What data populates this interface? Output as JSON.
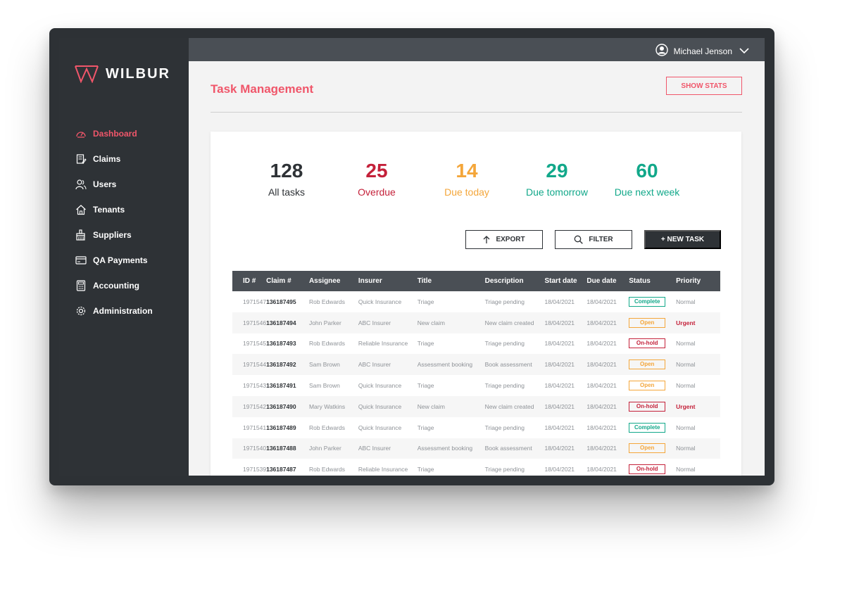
{
  "brand": {
    "name": "WILBUR",
    "accent": "#f0566a"
  },
  "sidebar": {
    "items": [
      {
        "label": "Dashboard",
        "icon": "speedometer-icon",
        "active": true
      },
      {
        "label": "Claims",
        "icon": "clipboard-edit-icon"
      },
      {
        "label": "Users",
        "icon": "users-icon"
      },
      {
        "label": "Tenants",
        "icon": "home-icon"
      },
      {
        "label": "Suppliers",
        "icon": "paint-brush-icon"
      },
      {
        "label": "QA Payments",
        "icon": "credit-card-icon"
      },
      {
        "label": "Accounting",
        "icon": "calculator-icon"
      },
      {
        "label": "Administration",
        "icon": "gear-icon"
      }
    ]
  },
  "topbar": {
    "user_name": "Michael Jenson"
  },
  "page": {
    "title": "Task Management",
    "show_stats_label": "SHOW STATS"
  },
  "stats": [
    {
      "value": "128",
      "label": "All tasks",
      "color": "#2e3236"
    },
    {
      "value": "25",
      "label": "Overdue",
      "color": "#c4213a"
    },
    {
      "value": "14",
      "label": "Due today",
      "color": "#f4a63a"
    },
    {
      "value": "29",
      "label": "Due tomorrow",
      "color": "#12a88a"
    },
    {
      "value": "60",
      "label": "Due next week",
      "color": "#12a88a"
    }
  ],
  "actions": {
    "export_label": "EXPORT",
    "filter_label": "FILTER",
    "new_task_label": "+ NEW TASK"
  },
  "table": {
    "columns": [
      "ID #",
      "Claim #",
      "Assignee",
      "Insurer",
      "Title",
      "Description",
      "Start date",
      "Due date",
      "Status",
      "Priority"
    ],
    "rows": [
      [
        "1971547",
        "136187495",
        "Rob Edwards",
        "Quick Insurance",
        "Triage",
        "Triage pending",
        "18/04/2021",
        "18/04/2021",
        "Complete",
        "Normal"
      ],
      [
        "1971546",
        "136187494",
        "John Parker",
        "ABC Insurer",
        "New claim",
        "New claim created",
        "18/04/2021",
        "18/04/2021",
        "Open",
        "Urgent"
      ],
      [
        "1971545",
        "136187493",
        "Rob Edwards",
        "Reliable Insurance",
        "Triage",
        "Triage pending",
        "18/04/2021",
        "18/04/2021",
        "On-hold",
        "Normal"
      ],
      [
        "1971544",
        "136187492",
        "Sam Brown",
        "ABC Insurer",
        "Assessment booking",
        "Book assessment",
        "18/04/2021",
        "18/04/2021",
        "Open",
        "Normal"
      ],
      [
        "1971543",
        "136187491",
        "Sam Brown",
        "Quick Insurance",
        "Triage",
        "Triage pending",
        "18/04/2021",
        "18/04/2021",
        "Open",
        "Normal"
      ],
      [
        "1971542",
        "136187490",
        "Mary Watkins",
        "Quick Insurance",
        "New claim",
        "New claim created",
        "18/04/2021",
        "18/04/2021",
        "On-hold",
        "Urgent"
      ],
      [
        "1971541",
        "136187489",
        "Rob Edwards",
        "Quick Insurance",
        "Triage",
        "Triage pending",
        "18/04/2021",
        "18/04/2021",
        "Complete",
        "Normal"
      ],
      [
        "1971540",
        "136187488",
        "John Parker",
        "ABC Insurer",
        "Assessment booking",
        "Book assessment",
        "18/04/2021",
        "18/04/2021",
        "Open",
        "Normal"
      ],
      [
        "1971539",
        "136187487",
        "Rob Edwards",
        "Reliable Insurance",
        "Triage",
        "Triage pending",
        "18/04/2021",
        "18/04/2021",
        "On-hold",
        "Normal"
      ]
    ]
  },
  "status_colors": {
    "Complete": "#12a88a",
    "Open": "#f4a63a",
    "On-hold": "#c4213a"
  }
}
